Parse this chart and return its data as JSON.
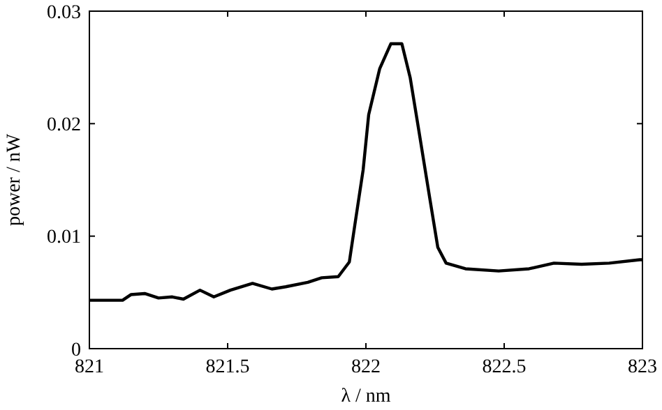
{
  "chart_data": {
    "type": "line",
    "xlabel": "λ / nm",
    "ylabel": "power / nW",
    "xlim": [
      821,
      823
    ],
    "ylim": [
      0,
      0.03
    ],
    "xticks": [
      821,
      821.5,
      822,
      822.5,
      823
    ],
    "yticks": [
      0,
      0.01,
      0.02,
      0.03
    ],
    "grid": false,
    "marker": "none",
    "line_style": "solid",
    "series": [
      {
        "color": "#000000",
        "x": [
          821,
          821.12,
          821.15,
          821.2,
          821.25,
          821.3,
          821.34,
          821.4,
          821.45,
          821.51,
          821.59,
          821.66,
          821.71,
          821.79,
          821.84,
          821.9,
          821.94,
          821.96,
          821.99,
          822.01,
          822.05,
          822.09,
          822.13,
          822.16,
          822.19,
          822.23,
          822.26,
          822.29,
          822.36,
          822.48,
          822.59,
          822.68,
          822.78,
          822.88,
          822.99,
          823
        ],
        "values": [
          0.0043,
          0.0043,
          0.0048,
          0.0049,
          0.0045,
          0.0046,
          0.0044,
          0.0052,
          0.0046,
          0.0052,
          0.0058,
          0.0053,
          0.0055,
          0.0059,
          0.0063,
          0.0064,
          0.0077,
          0.011,
          0.0159,
          0.0208,
          0.0249,
          0.0271,
          0.0271,
          0.0241,
          0.0196,
          0.0135,
          0.009,
          0.0076,
          0.0071,
          0.0069,
          0.0071,
          0.0076,
          0.0075,
          0.0076,
          0.0079,
          0.0079
        ]
      }
    ]
  }
}
